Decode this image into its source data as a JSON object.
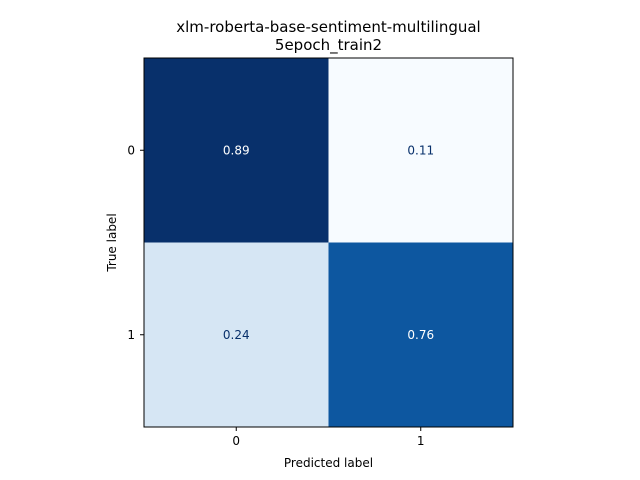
{
  "chart_data": {
    "type": "heatmap",
    "title": "xlm-roberta-base-sentiment-multilingual\n5epoch_train2",
    "title_lines": [
      "xlm-roberta-base-sentiment-multilingual",
      "5epoch_train2"
    ],
    "xlabel": "Predicted label",
    "ylabel": "True label",
    "x_categories": [
      "0",
      "1"
    ],
    "y_categories": [
      "0",
      "1"
    ],
    "values": [
      [
        0.89,
        0.11
      ],
      [
        0.24,
        0.76
      ]
    ],
    "value_labels": [
      [
        "0.89",
        "0.11"
      ],
      [
        "0.24",
        "0.76"
      ]
    ],
    "colormap": "Blues",
    "color_range": [
      0.11,
      0.89
    ],
    "cell_colors": [
      [
        "#08306b",
        "#f7fbff"
      ],
      [
        "#d6e6f4",
        "#0d57a0"
      ]
    ],
    "label_colors": [
      [
        "#ffffff",
        "#08306b"
      ],
      [
        "#08306b",
        "#ffffff"
      ]
    ],
    "colorbar": false,
    "grid": false
  }
}
